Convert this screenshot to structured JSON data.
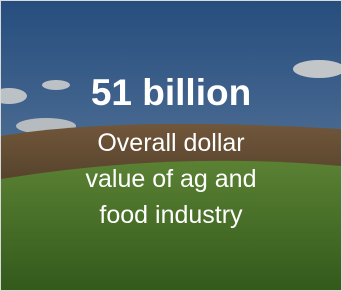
{
  "headline": "51 billion",
  "body_lines": [
    "Overall dollar",
    "value of ag and",
    "food industry"
  ]
}
